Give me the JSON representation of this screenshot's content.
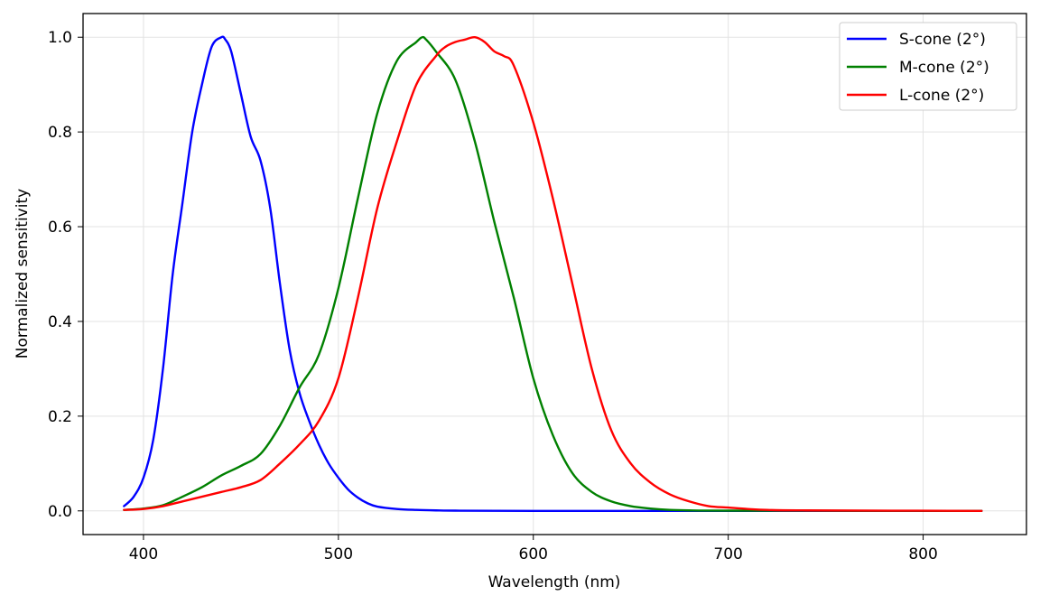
{
  "chart_data": {
    "type": "line",
    "title": "",
    "xlabel": "Wavelength (nm)",
    "ylabel": "Normalized sensitivity",
    "xlim": [
      369,
      853
    ],
    "ylim": [
      -0.05,
      1.05
    ],
    "xticks": [
      400,
      500,
      600,
      700,
      800
    ],
    "yticks": [
      0.0,
      0.2,
      0.4,
      0.6,
      0.8,
      1.0
    ],
    "xtick_labels": [
      "400",
      "500",
      "600",
      "700",
      "800"
    ],
    "ytick_labels": [
      "0.0",
      "0.2",
      "0.4",
      "0.6",
      "0.8",
      "1.0"
    ],
    "grid": true,
    "legend_position": "top-right",
    "series": [
      {
        "name": "S-cone (2°)",
        "color": "#0000ff",
        "x": [
          390,
          395,
          400,
          405,
          410,
          415,
          420,
          425,
          430,
          435,
          440,
          442,
          445,
          450,
          455,
          460,
          465,
          470,
          475,
          480,
          485,
          490,
          495,
          500,
          505,
          510,
          515,
          520,
          530,
          540,
          550,
          560,
          600,
          700,
          830
        ],
        "y": [
          0.01,
          0.03,
          0.07,
          0.15,
          0.3,
          0.5,
          0.65,
          0.8,
          0.9,
          0.98,
          1.0,
          0.995,
          0.97,
          0.88,
          0.79,
          0.74,
          0.64,
          0.48,
          0.34,
          0.25,
          0.19,
          0.14,
          0.1,
          0.07,
          0.045,
          0.028,
          0.016,
          0.009,
          0.004,
          0.002,
          0.001,
          0.0005,
          0.0,
          0.0,
          0.0
        ]
      },
      {
        "name": "M-cone (2°)",
        "color": "#008000",
        "x": [
          390,
          400,
          410,
          420,
          430,
          440,
          450,
          460,
          470,
          480,
          490,
          500,
          510,
          520,
          530,
          540,
          543,
          545,
          550,
          560,
          570,
          580,
          590,
          600,
          610,
          620,
          630,
          640,
          650,
          660,
          670,
          680,
          700,
          830
        ],
        "y": [
          0.002,
          0.005,
          0.012,
          0.03,
          0.05,
          0.075,
          0.095,
          0.12,
          0.18,
          0.26,
          0.33,
          0.47,
          0.66,
          0.84,
          0.95,
          0.99,
          1.0,
          0.995,
          0.97,
          0.91,
          0.78,
          0.61,
          0.45,
          0.28,
          0.16,
          0.08,
          0.04,
          0.02,
          0.01,
          0.005,
          0.002,
          0.001,
          0.0005,
          0.0
        ]
      },
      {
        "name": "L-cone (2°)",
        "color": "#ff0000",
        "x": [
          390,
          400,
          410,
          420,
          430,
          440,
          450,
          460,
          470,
          480,
          490,
          500,
          510,
          520,
          530,
          540,
          550,
          555,
          560,
          565,
          570,
          575,
          580,
          585,
          590,
          600,
          610,
          620,
          630,
          640,
          650,
          660,
          670,
          680,
          690,
          700,
          710,
          720,
          740,
          830
        ],
        "y": [
          0.002,
          0.004,
          0.01,
          0.02,
          0.03,
          0.04,
          0.05,
          0.065,
          0.1,
          0.14,
          0.19,
          0.28,
          0.45,
          0.64,
          0.78,
          0.9,
          0.96,
          0.98,
          0.99,
          0.995,
          1.0,
          0.99,
          0.97,
          0.96,
          0.94,
          0.82,
          0.66,
          0.48,
          0.3,
          0.17,
          0.1,
          0.06,
          0.035,
          0.02,
          0.01,
          0.007,
          0.004,
          0.002,
          0.001,
          0.0
        ]
      }
    ]
  }
}
